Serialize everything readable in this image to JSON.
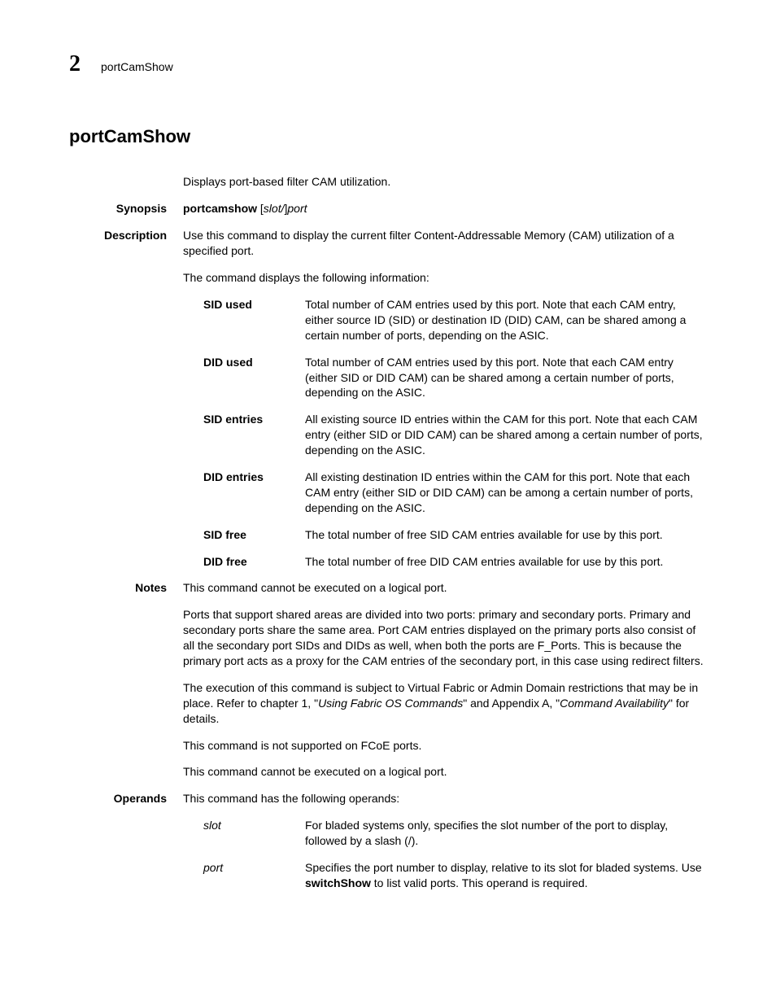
{
  "header": {
    "chapter_number": "2",
    "running_title": "portCamShow"
  },
  "title": "portCamShow",
  "summary": "Displays port-based filter CAM utilization.",
  "synopsis": {
    "label": "Synopsis",
    "command": "portcamshow",
    "args_prefix": " [",
    "args_slot": "slot/",
    "args_mid": "]",
    "args_port": "port"
  },
  "description": {
    "label": "Description",
    "intro": "Use this command to display the current filter Content-Addressable Memory (CAM) utilization of a specified port.",
    "displays": "The command displays the following information:",
    "items": [
      {
        "term": "SID used",
        "desc": "Total number of CAM entries used by this port. Note that each CAM entry, either source ID (SID) or destination ID (DID) CAM, can be shared among a certain number of ports, depending on the ASIC."
      },
      {
        "term": "DID used",
        "desc": "Total number of CAM entries used by this port. Note that each CAM entry (either SID or DID CAM) can be shared among a certain number of ports, depending on the ASIC."
      },
      {
        "term": "SID entries",
        "desc": "All existing source ID entries within the CAM for this port. Note that each CAM entry (either SID or DID CAM) can be shared among a certain number of ports, depending on the ASIC."
      },
      {
        "term": "DID entries",
        "desc": "All existing destination ID entries within the CAM for this port. Note that each CAM entry (either SID or DID CAM) can be among a certain number of ports, depending on the ASIC."
      },
      {
        "term": "SID free",
        "desc": "The total number of free SID CAM entries available for use by this port."
      },
      {
        "term": "DID free",
        "desc": "The total number of free DID CAM entries available for use by this port."
      }
    ]
  },
  "notes": {
    "label": "Notes",
    "p1": "This command cannot be executed on a logical port.",
    "p2": "Ports that support shared areas are divided into two ports: primary and secondary ports. Primary and secondary ports share the same area. Port CAM entries displayed on the primary ports also consist of all the secondary port SIDs and DIDs as well, when both the ports are F_Ports. This is because the primary port acts as a proxy for the CAM entries of the secondary port, in this case using redirect filters.",
    "p3_a": "The execution of this command is subject to Virtual Fabric or Admin Domain restrictions that may be in place. Refer to chapter 1, \"",
    "p3_i1": "Using Fabric OS Commands",
    "p3_b": "\" and Appendix A, \"",
    "p3_i2": "Command Availability",
    "p3_c": "\" for details.",
    "p4": "This command is not supported on FCoE ports.",
    "p5": "This command cannot be executed on a logical port."
  },
  "operands": {
    "label": "Operands",
    "intro": "This command has the following operands:",
    "items": [
      {
        "term": "slot",
        "desc": "For bladed systems only, specifies the slot number of the port to display, followed by a slash (/)."
      }
    ],
    "port_term": "port",
    "port_a": "Specifies the port number to display, relative to its slot for bladed systems. Use ",
    "port_b": "switchShow",
    "port_c": " to list valid ports. This operand is required."
  }
}
